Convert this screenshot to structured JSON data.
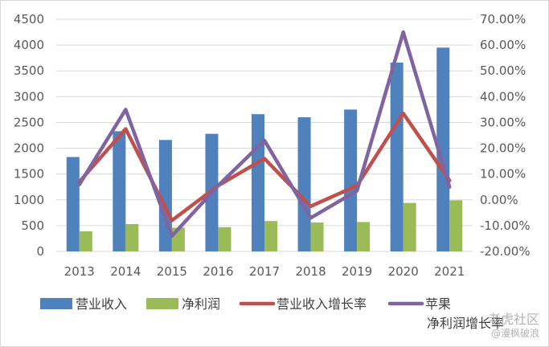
{
  "chart_data": {
    "type": "bar",
    "categories": [
      "2013",
      "2014",
      "2015",
      "2016",
      "2017",
      "2018",
      "2019",
      "2020",
      "2021"
    ],
    "series": [
      {
        "name": "营业收入",
        "type": "bar",
        "axis": "left",
        "color": "#4f81bd",
        "values": [
          1830,
          2330,
          2160,
          2280,
          2660,
          2600,
          2750,
          3660,
          3950
        ]
      },
      {
        "name": "净利润",
        "type": "bar",
        "axis": "left",
        "color": "#9bbb59",
        "values": [
          390,
          530,
          460,
          470,
          590,
          560,
          570,
          940,
          990
        ]
      },
      {
        "name": "营业收入增长率",
        "type": "line",
        "axis": "right",
        "color": "#c0504d",
        "values": [
          0.07,
          0.275,
          -0.08,
          0.055,
          0.16,
          -0.025,
          0.055,
          0.335,
          0.075
        ]
      },
      {
        "name": "苹果\n净利润增长率",
        "type": "line",
        "axis": "right",
        "color": "#8064a2",
        "values": [
          0.06,
          0.35,
          -0.14,
          0.055,
          0.23,
          -0.07,
          0.035,
          0.65,
          0.05
        ]
      }
    ],
    "y_left": {
      "ylim": [
        0,
        4500
      ],
      "ticks": [
        "0",
        "500",
        "1000",
        "1500",
        "2000",
        "2500",
        "3000",
        "3500",
        "4000",
        "4500"
      ]
    },
    "y_right": {
      "ylim": [
        -0.2,
        0.7
      ],
      "ticks": [
        "-20.00%",
        "-10.00%",
        "0.00%",
        "10.00%",
        "20.00%",
        "30.00%",
        "40.00%",
        "50.00%",
        "60.00%",
        "70.00%"
      ]
    },
    "grid": true,
    "legend": "bottom"
  },
  "watermark": {
    "top": "老虎社区",
    "bottom": "@漫枫破浪"
  }
}
